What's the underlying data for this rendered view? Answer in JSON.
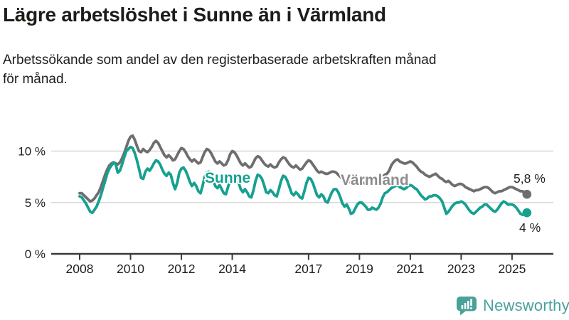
{
  "header": {
    "title": "Lägre arbetslöshet i Sunne än i Värmland",
    "subtitle_line1": "Arbetssökande som andel av den registerbaserade arbetskraften månad",
    "subtitle_line2": "för månad."
  },
  "footer": {
    "brand": "Newsworthy",
    "logo_icon": "bar-chart-speech-bubble-icon"
  },
  "colors": {
    "sunne": "#16a090",
    "varmland": "#6e6e6e",
    "varmland_label": "#8d8d8d",
    "grid": "#d8d8d8",
    "axis": "#3a3a3a",
    "tick_text": "#1f1f1f",
    "annotation_text": "#222222",
    "brand_teal": "#4aa19b",
    "title_text": "#1c1c19"
  },
  "chart_data": {
    "type": "line",
    "title": "Lägre arbetslöshet i Sunne än i Värmland",
    "xlabel": "",
    "ylabel": "Arbetssökande som andel av den registerbaserade arbetskraften",
    "x_unit": "month",
    "x_range": [
      "2008-01",
      "2025-08"
    ],
    "ylim": [
      0,
      12.5
    ],
    "grid": "horizontal-only",
    "legend_position": "inline-labels",
    "y_ticks": [
      {
        "value": 0,
        "label": "0 %"
      },
      {
        "value": 5,
        "label": "5 %"
      },
      {
        "value": 10,
        "label": "10 %"
      }
    ],
    "x_ticks": [
      {
        "year": 2008,
        "label": "2008"
      },
      {
        "year": 2010,
        "label": "2010"
      },
      {
        "year": 2012,
        "label": "2012"
      },
      {
        "year": 2014,
        "label": "2014"
      },
      {
        "year": 2017,
        "label": "2017"
      },
      {
        "year": 2019,
        "label": "2019"
      },
      {
        "year": 2021,
        "label": "2021"
      },
      {
        "year": 2023,
        "label": "2023"
      },
      {
        "year": 2025,
        "label": "2025"
      }
    ],
    "series": [
      {
        "name": "Värmland",
        "end_label": "5,8 %",
        "values": [
          5.9,
          5.9,
          5.7,
          5.5,
          5.3,
          5.1,
          5.2,
          5.4,
          5.7,
          6.0,
          6.5,
          7.1,
          7.7,
          8.2,
          8.6,
          8.8,
          8.9,
          8.8,
          8.7,
          8.9,
          9.3,
          9.8,
          10.4,
          11.0,
          11.4,
          11.5,
          11.1,
          10.5,
          10.0,
          9.9,
          10.2,
          10.0,
          9.9,
          10.1,
          10.4,
          10.8,
          11.0,
          10.8,
          10.4,
          10.0,
          9.6,
          9.4,
          9.6,
          9.4,
          9.1,
          9.2,
          9.6,
          10.0,
          10.3,
          10.2,
          9.9,
          9.5,
          9.2,
          9.0,
          9.2,
          9.0,
          8.8,
          8.9,
          9.4,
          9.9,
          10.2,
          10.1,
          9.8,
          9.4,
          9.0,
          8.8,
          9.0,
          8.8,
          8.6,
          8.7,
          9.1,
          9.7,
          10.0,
          9.9,
          9.6,
          9.2,
          8.8,
          8.6,
          8.8,
          8.6,
          8.4,
          8.5,
          8.9,
          9.3,
          9.5,
          9.4,
          9.1,
          8.8,
          8.6,
          8.5,
          8.7,
          8.5,
          8.4,
          8.5,
          8.9,
          9.2,
          9.4,
          9.3,
          9.0,
          8.7,
          8.5,
          8.4,
          8.6,
          8.4,
          8.2,
          8.3,
          8.6,
          8.9,
          9.1,
          9.0,
          8.7,
          8.4,
          8.1,
          7.9,
          8.0,
          7.9,
          7.8,
          7.8,
          7.9,
          8.0,
          8.0,
          7.9,
          7.7,
          7.5,
          7.3,
          7.2,
          7.3,
          7.1,
          6.9,
          6.8,
          6.9,
          7.0,
          7.1,
          7.0,
          6.9,
          6.8,
          6.7,
          6.8,
          7.0,
          7.0,
          6.9,
          7.0,
          7.2,
          7.5,
          7.7,
          7.8,
          8.1,
          8.6,
          8.9,
          9.1,
          9.2,
          9.0,
          8.9,
          8.8,
          8.8,
          8.9,
          9.0,
          8.9,
          8.7,
          8.5,
          8.2,
          8.0,
          7.9,
          7.7,
          7.6,
          7.5,
          7.6,
          7.7,
          7.8,
          7.6,
          7.4,
          7.3,
          7.1,
          7.0,
          7.1,
          6.9,
          6.7,
          6.6,
          6.7,
          6.8,
          6.8,
          6.7,
          6.5,
          6.4,
          6.3,
          6.2,
          6.1,
          6.2,
          6.2,
          6.3,
          6.4,
          6.5,
          6.5,
          6.4,
          6.2,
          6.0,
          5.9,
          6.0,
          6.1,
          6.1,
          6.2,
          6.3,
          6.4,
          6.5,
          6.5,
          6.4,
          6.3,
          6.2,
          6.1,
          6.1,
          5.9,
          5.8
        ]
      },
      {
        "name": "Sunne",
        "end_label": "4 %",
        "values": [
          5.6,
          5.5,
          5.2,
          4.9,
          4.5,
          4.1,
          4.0,
          4.3,
          4.6,
          5.1,
          5.7,
          6.4,
          7.1,
          7.8,
          8.3,
          8.6,
          8.9,
          8.7,
          7.9,
          8.1,
          8.7,
          9.4,
          10.0,
          10.2,
          10.4,
          10.3,
          9.8,
          9.1,
          8.3,
          7.4,
          7.3,
          8.0,
          8.3,
          8.1,
          8.4,
          8.8,
          9.1,
          9.0,
          8.7,
          8.2,
          7.8,
          7.6,
          7.9,
          7.7,
          6.9,
          6.3,
          6.9,
          7.9,
          8.3,
          8.4,
          8.1,
          7.6,
          7.0,
          6.6,
          6.9,
          6.6,
          6.1,
          5.9,
          6.6,
          7.5,
          7.9,
          8.0,
          7.7,
          7.2,
          6.6,
          6.4,
          6.7,
          6.3,
          5.9,
          5.8,
          6.5,
          7.2,
          7.6,
          7.7,
          7.4,
          6.9,
          6.3,
          6.0,
          6.3,
          6.0,
          5.6,
          5.5,
          6.2,
          7.1,
          7.7,
          7.6,
          7.3,
          6.7,
          6.0,
          5.9,
          6.2,
          6.0,
          5.7,
          5.6,
          6.3,
          7.1,
          7.6,
          7.5,
          7.1,
          6.5,
          5.9,
          5.7,
          6.0,
          5.8,
          5.5,
          5.4,
          6.1,
          6.9,
          7.4,
          7.3,
          6.9,
          6.3,
          5.7,
          5.5,
          5.8,
          5.6,
          5.1,
          5.0,
          5.5,
          6.0,
          6.3,
          6.3,
          6.0,
          5.5,
          4.9,
          4.6,
          4.8,
          4.4,
          3.9,
          4.0,
          4.4,
          4.8,
          5.0,
          5.0,
          4.8,
          4.6,
          4.3,
          4.3,
          4.5,
          4.4,
          4.3,
          4.5,
          4.9,
          5.5,
          5.9,
          6.0,
          6.2,
          6.4,
          6.5,
          6.6,
          6.7,
          6.5,
          6.4,
          6.3,
          6.4,
          6.6,
          6.7,
          6.6,
          6.4,
          6.3,
          6.0,
          5.7,
          5.5,
          5.3,
          5.4,
          5.6,
          5.6,
          5.7,
          5.7,
          5.6,
          5.4,
          5.1,
          4.5,
          3.9,
          4.1,
          4.4,
          4.7,
          4.9,
          5.0,
          5.0,
          5.1,
          5.0,
          4.8,
          4.5,
          4.2,
          4.0,
          3.9,
          4.1,
          4.3,
          4.5,
          4.6,
          4.8,
          4.8,
          4.6,
          4.4,
          4.2,
          4.1,
          4.3,
          4.6,
          4.9,
          5.1,
          5.0,
          4.8,
          4.8,
          4.8,
          4.7,
          4.5,
          4.2,
          3.9,
          3.8,
          3.9,
          4.0
        ]
      }
    ]
  }
}
